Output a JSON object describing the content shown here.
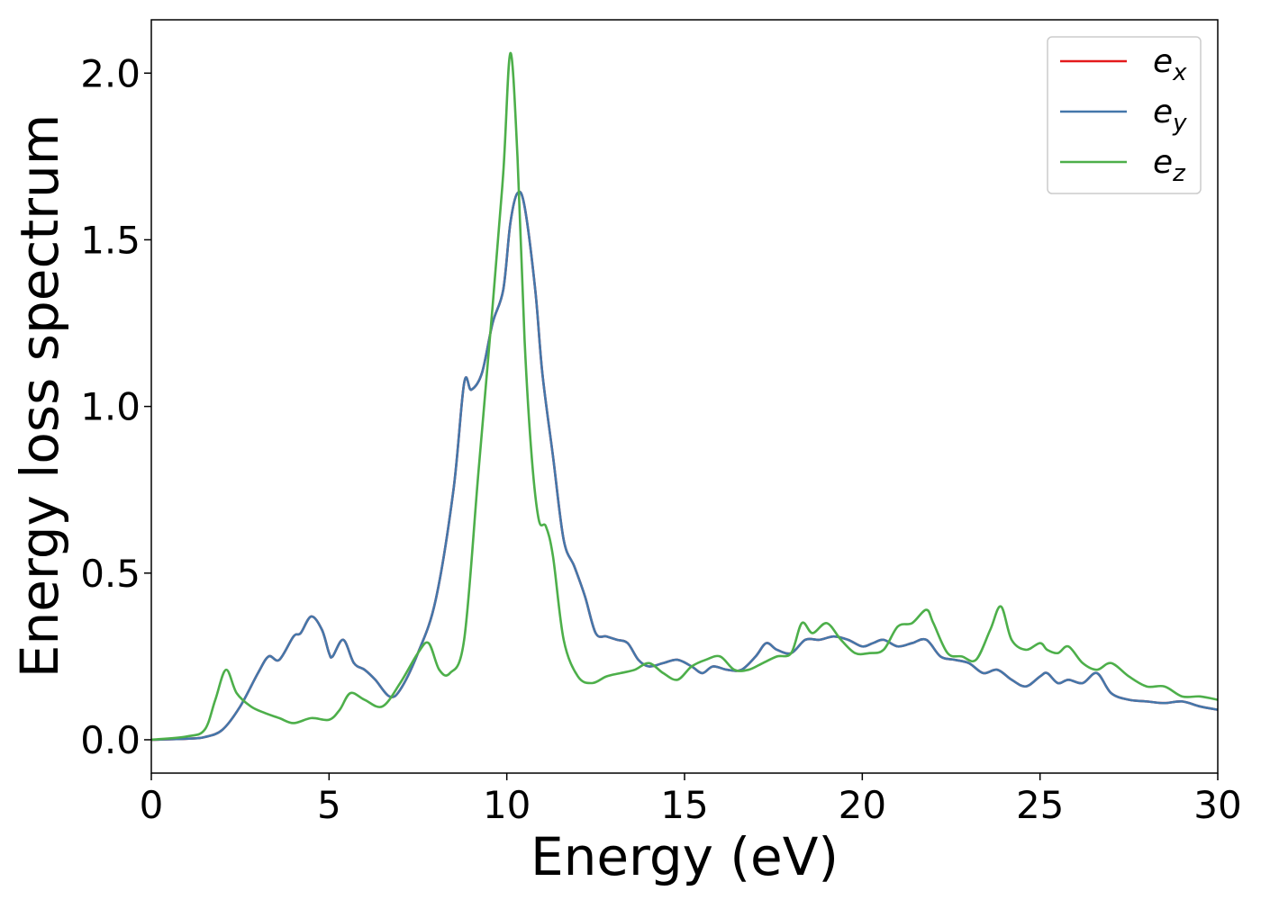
{
  "chart_data": {
    "type": "line",
    "title": "",
    "xlabel": "Energy (eV)",
    "ylabel": "Energy loss spectrum",
    "xlim": [
      0,
      30
    ],
    "ylim": [
      -0.1,
      2.16
    ],
    "xticks": [
      0,
      5,
      10,
      15,
      20,
      25,
      30
    ],
    "xtick_labels": [
      "0",
      "5",
      "10",
      "15",
      "20",
      "25",
      "30"
    ],
    "yticks": [
      0.0,
      0.5,
      1.0,
      1.5,
      2.0
    ],
    "ytick_labels": [
      "0.0",
      "0.5",
      "1.0",
      "1.5",
      "2.0"
    ],
    "grid": false,
    "legend_position": "top-right",
    "series": [
      {
        "name": "e_x",
        "label_base": "e",
        "label_sub": "x",
        "color": "#e41a1c",
        "x": [
          0,
          1,
          1.5,
          2,
          2.5,
          3,
          3.3,
          3.6,
          4,
          4.2,
          4.5,
          4.8,
          5,
          5.1,
          5.4,
          5.7,
          6,
          6.3,
          6.7,
          7,
          7.5,
          8,
          8.5,
          8.8,
          9,
          9.3,
          9.6,
          9.9,
          10.1,
          10.3,
          10.5,
          10.8,
          11,
          11.3,
          11.6,
          11.9,
          12.2,
          12.5,
          12.8,
          13.1,
          13.4,
          13.7,
          14,
          14.4,
          14.8,
          15.2,
          15.5,
          15.8,
          16.2,
          16.6,
          17,
          17.3,
          17.6,
          18,
          18.4,
          18.8,
          19.2,
          19.6,
          20,
          20.3,
          20.6,
          21,
          21.4,
          21.8,
          22.2,
          22.6,
          23,
          23.4,
          23.8,
          24.2,
          24.6,
          25,
          25.2,
          25.5,
          25.8,
          26.2,
          26.6,
          27,
          27.5,
          28,
          28.5,
          29,
          29.5,
          30
        ],
        "y": [
          0.0,
          0.003,
          0.008,
          0.03,
          0.1,
          0.2,
          0.25,
          0.24,
          0.31,
          0.32,
          0.37,
          0.33,
          0.26,
          0.25,
          0.3,
          0.23,
          0.21,
          0.18,
          0.13,
          0.15,
          0.26,
          0.42,
          0.75,
          1.07,
          1.05,
          1.1,
          1.25,
          1.35,
          1.55,
          1.64,
          1.6,
          1.35,
          1.1,
          0.85,
          0.6,
          0.52,
          0.43,
          0.32,
          0.31,
          0.3,
          0.29,
          0.24,
          0.22,
          0.23,
          0.24,
          0.22,
          0.2,
          0.22,
          0.21,
          0.21,
          0.25,
          0.29,
          0.27,
          0.26,
          0.3,
          0.3,
          0.31,
          0.3,
          0.28,
          0.29,
          0.3,
          0.28,
          0.29,
          0.3,
          0.25,
          0.24,
          0.23,
          0.2,
          0.21,
          0.18,
          0.16,
          0.19,
          0.2,
          0.17,
          0.18,
          0.17,
          0.2,
          0.14,
          0.12,
          0.115,
          0.11,
          0.115,
          0.1,
          0.09
        ]
      },
      {
        "name": "e_y",
        "label_base": "e",
        "label_sub": "y",
        "color": "#4477aa",
        "x": [
          0,
          1,
          1.5,
          2,
          2.5,
          3,
          3.3,
          3.6,
          4,
          4.2,
          4.5,
          4.8,
          5,
          5.1,
          5.4,
          5.7,
          6,
          6.3,
          6.7,
          7,
          7.5,
          8,
          8.5,
          8.8,
          9,
          9.3,
          9.6,
          9.9,
          10.1,
          10.3,
          10.5,
          10.8,
          11,
          11.3,
          11.6,
          11.9,
          12.2,
          12.5,
          12.8,
          13.1,
          13.4,
          13.7,
          14,
          14.4,
          14.8,
          15.2,
          15.5,
          15.8,
          16.2,
          16.6,
          17,
          17.3,
          17.6,
          18,
          18.4,
          18.8,
          19.2,
          19.6,
          20,
          20.3,
          20.6,
          21,
          21.4,
          21.8,
          22.2,
          22.6,
          23,
          23.4,
          23.8,
          24.2,
          24.6,
          25,
          25.2,
          25.5,
          25.8,
          26.2,
          26.6,
          27,
          27.5,
          28,
          28.5,
          29,
          29.5,
          30
        ],
        "y": [
          0.0,
          0.003,
          0.008,
          0.03,
          0.1,
          0.2,
          0.25,
          0.24,
          0.31,
          0.32,
          0.37,
          0.33,
          0.26,
          0.25,
          0.3,
          0.23,
          0.21,
          0.18,
          0.13,
          0.15,
          0.26,
          0.42,
          0.75,
          1.07,
          1.05,
          1.1,
          1.25,
          1.35,
          1.55,
          1.64,
          1.6,
          1.35,
          1.1,
          0.85,
          0.6,
          0.52,
          0.43,
          0.32,
          0.31,
          0.3,
          0.29,
          0.24,
          0.22,
          0.23,
          0.24,
          0.22,
          0.2,
          0.22,
          0.21,
          0.21,
          0.25,
          0.29,
          0.27,
          0.26,
          0.3,
          0.3,
          0.31,
          0.3,
          0.28,
          0.29,
          0.3,
          0.28,
          0.29,
          0.3,
          0.25,
          0.24,
          0.23,
          0.2,
          0.21,
          0.18,
          0.16,
          0.19,
          0.2,
          0.17,
          0.18,
          0.17,
          0.2,
          0.14,
          0.12,
          0.115,
          0.11,
          0.115,
          0.1,
          0.09
        ]
      },
      {
        "name": "e_z",
        "label_base": "e",
        "label_sub": "z",
        "color": "#4daf4a",
        "x": [
          0,
          1,
          1.5,
          1.8,
          2.1,
          2.4,
          2.8,
          3.2,
          3.6,
          4,
          4.5,
          5,
          5.3,
          5.6,
          6,
          6.5,
          7,
          7.5,
          7.8,
          8.1,
          8.4,
          8.8,
          9.2,
          9.6,
          9.9,
          10.1,
          10.3,
          10.5,
          10.7,
          10.9,
          11.1,
          11.3,
          11.6,
          12,
          12.4,
          12.8,
          13.2,
          13.6,
          14,
          14.4,
          14.8,
          15.2,
          15.6,
          16,
          16.4,
          16.8,
          17.2,
          17.6,
          18,
          18.3,
          18.6,
          19,
          19.4,
          19.8,
          20.2,
          20.6,
          21,
          21.4,
          21.8,
          22,
          22.4,
          22.8,
          23.2,
          23.6,
          23.9,
          24.2,
          24.6,
          25,
          25.2,
          25.5,
          25.8,
          26.2,
          26.6,
          27,
          27.5,
          28,
          28.5,
          29,
          29.5,
          30
        ],
        "y": [
          0.0,
          0.01,
          0.03,
          0.12,
          0.21,
          0.14,
          0.1,
          0.08,
          0.065,
          0.05,
          0.065,
          0.06,
          0.09,
          0.14,
          0.12,
          0.1,
          0.17,
          0.26,
          0.29,
          0.21,
          0.2,
          0.3,
          0.8,
          1.3,
          1.7,
          2.06,
          1.75,
          1.2,
          0.85,
          0.66,
          0.64,
          0.55,
          0.3,
          0.19,
          0.17,
          0.19,
          0.2,
          0.21,
          0.23,
          0.2,
          0.18,
          0.22,
          0.24,
          0.25,
          0.21,
          0.21,
          0.23,
          0.25,
          0.26,
          0.35,
          0.32,
          0.35,
          0.3,
          0.26,
          0.26,
          0.27,
          0.34,
          0.35,
          0.39,
          0.35,
          0.26,
          0.25,
          0.24,
          0.33,
          0.4,
          0.3,
          0.27,
          0.29,
          0.27,
          0.26,
          0.28,
          0.23,
          0.21,
          0.23,
          0.19,
          0.16,
          0.16,
          0.13,
          0.13,
          0.12
        ]
      }
    ]
  }
}
